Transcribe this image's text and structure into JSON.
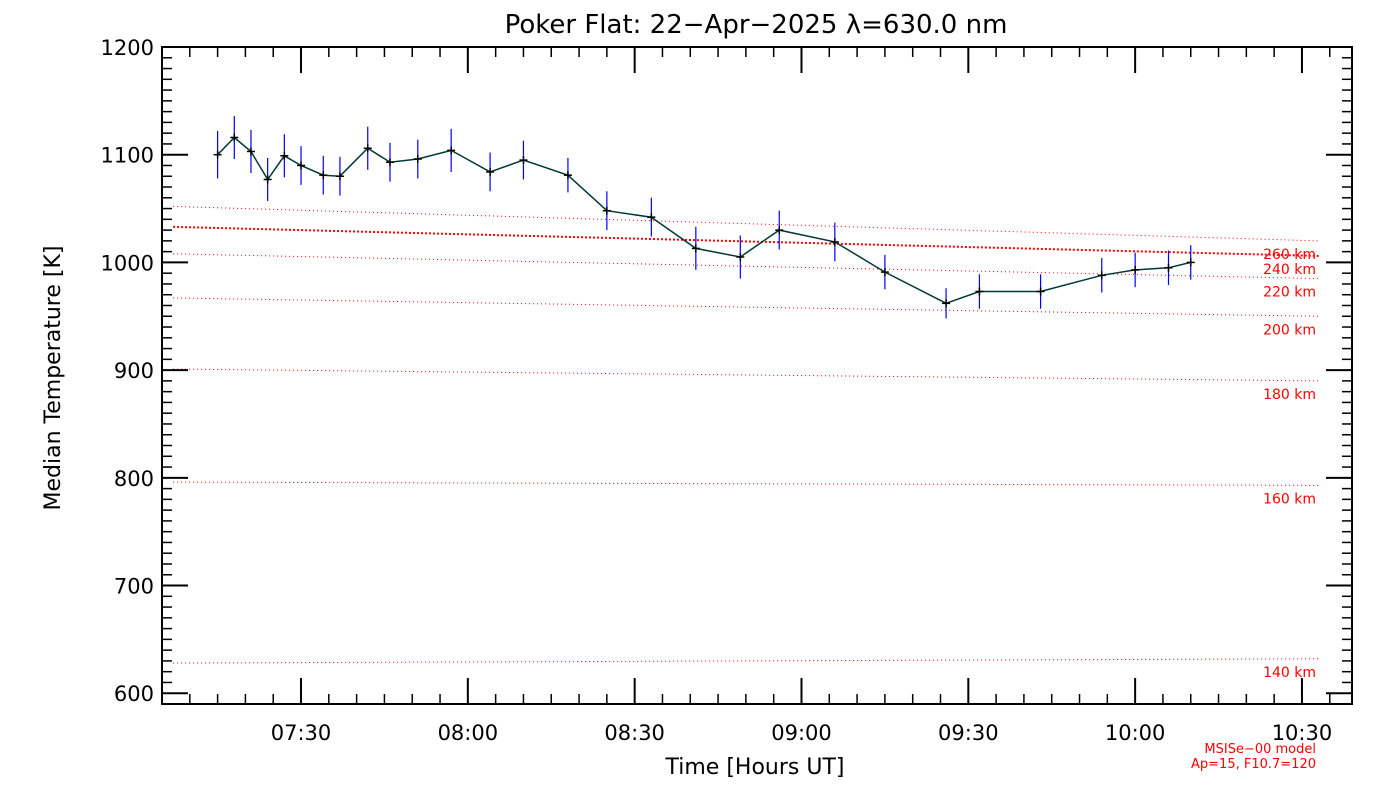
{
  "chart_data": {
    "type": "line",
    "title": "Poker Flat: 22−Apr−2025 λ=630.0 nm",
    "xlabel": "Time [Hours UT]",
    "ylabel": "Median Temperature [K]",
    "xlim": [
      "07:05",
      "10:39"
    ],
    "ylim": [
      590,
      1200
    ],
    "x_ticks": [
      "07:30",
      "08:00",
      "08:30",
      "09:00",
      "09:30",
      "10:00",
      "10:30"
    ],
    "y_ticks": [
      600,
      700,
      800,
      900,
      1000,
      1100,
      1200
    ],
    "grid": false,
    "colors": {
      "line": "#003838",
      "marker": "#000000",
      "error_bar": "#0000ff",
      "model": "#ff0000"
    },
    "series": [
      {
        "x": [
          "07:15",
          "07:18",
          "07:21",
          "07:24",
          "07:27",
          "07:30",
          "07:34",
          "07:37",
          "07:42",
          "07:46",
          "07:51",
          "07:57",
          "08:04",
          "08:10",
          "08:18",
          "08:25",
          "08:33",
          "08:41",
          "08:49",
          "08:56",
          "09:06",
          "09:15",
          "09:26",
          "09:32",
          "09:43",
          "09:54",
          "10:00",
          "10:06",
          "10:10"
        ],
        "y": [
          1100,
          1116,
          1103,
          1077,
          1099,
          1090,
          1081,
          1080,
          1106,
          1093,
          1096,
          1104,
          1084,
          1095,
          1081,
          1048,
          1042,
          1013,
          1005,
          1030,
          1019,
          991,
          962,
          973,
          973,
          988,
          993,
          995,
          1000
        ],
        "error": [
          22,
          20,
          20,
          20,
          20,
          18,
          18,
          18,
          20,
          18,
          18,
          20,
          18,
          18,
          16,
          18,
          18,
          20,
          20,
          18,
          18,
          16,
          14,
          16,
          16,
          16,
          16,
          16,
          16
        ]
      }
    ],
    "model_curves": [
      {
        "label": "140 km",
        "start": 628,
        "end": 632
      },
      {
        "label": "160 km",
        "start": 796,
        "end": 793
      },
      {
        "label": "180 km",
        "start": 901,
        "end": 890
      },
      {
        "label": "200 km",
        "start": 967,
        "end": 950
      },
      {
        "label": "220 km",
        "start": 1008,
        "end": 985
      },
      {
        "label": "240 km",
        "start": 1033,
        "end": 1006
      },
      {
        "label": "260 km",
        "start": 1052,
        "end": 1020
      }
    ],
    "model_note": [
      "MSISe−00 model",
      "Ap=15, F10.7=120"
    ]
  }
}
